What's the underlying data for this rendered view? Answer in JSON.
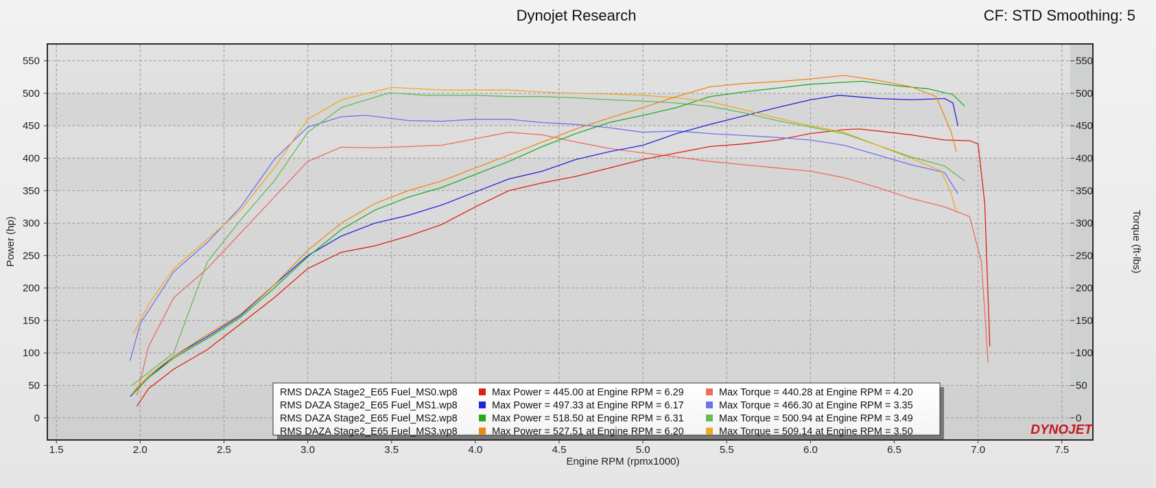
{
  "header": {
    "title": "Dynojet Research",
    "cf_label": "CF: STD Smoothing: 5"
  },
  "logo_text": "DYNOJET",
  "chart_data": {
    "type": "line",
    "xlabel": "Engine RPM (rpmx1000)",
    "ylabel": "Power (hp)",
    "y2label": "Torque (ft-lbs)",
    "xlim": [
      1.45,
      7.55
    ],
    "ylim": [
      -33,
      575
    ],
    "x_ticks": [
      "1.5",
      "2.0",
      "2.5",
      "3.0",
      "3.5",
      "4.0",
      "4.5",
      "5.0",
      "5.5",
      "6.0",
      "6.5",
      "7.0",
      "7.5"
    ],
    "y_ticks": [
      "0",
      "50",
      "100",
      "150",
      "200",
      "250",
      "300",
      "350",
      "400",
      "450",
      "500",
      "550"
    ],
    "grid": true,
    "legend_position": "bottom-center",
    "runs": [
      {
        "file": "RMS DAZA Stage2_E65 Fuel_MS0.wp8",
        "power_color": "#dd2211",
        "torque_color": "#ee6a5e",
        "power_legend": "Max Power = 445.00 at Engine RPM = 6.29",
        "torque_legend": "Max Torque = 440.28 at Engine RPM = 4.20",
        "power": [
          [
            1.98,
            18
          ],
          [
            2.05,
            45
          ],
          [
            2.2,
            75
          ],
          [
            2.4,
            105
          ],
          [
            2.6,
            145
          ],
          [
            2.8,
            185
          ],
          [
            3.0,
            230
          ],
          [
            3.2,
            255
          ],
          [
            3.4,
            265
          ],
          [
            3.6,
            280
          ],
          [
            3.8,
            298
          ],
          [
            4.0,
            325
          ],
          [
            4.2,
            350
          ],
          [
            4.4,
            362
          ],
          [
            4.6,
            372
          ],
          [
            4.8,
            385
          ],
          [
            5.0,
            398
          ],
          [
            5.2,
            408
          ],
          [
            5.4,
            418
          ],
          [
            5.6,
            422
          ],
          [
            5.8,
            428
          ],
          [
            6.0,
            438
          ],
          [
            6.2,
            444
          ],
          [
            6.29,
            445
          ],
          [
            6.4,
            442
          ],
          [
            6.6,
            436
          ],
          [
            6.8,
            428
          ],
          [
            6.95,
            427
          ],
          [
            7.0,
            422
          ],
          [
            7.04,
            330
          ],
          [
            7.07,
            110
          ]
        ],
        "torque": [
          [
            1.98,
            35
          ],
          [
            2.05,
            110
          ],
          [
            2.2,
            185
          ],
          [
            2.4,
            230
          ],
          [
            2.6,
            285
          ],
          [
            2.8,
            340
          ],
          [
            3.0,
            395
          ],
          [
            3.2,
            417
          ],
          [
            3.4,
            416
          ],
          [
            3.6,
            418
          ],
          [
            3.8,
            420
          ],
          [
            4.0,
            430
          ],
          [
            4.2,
            440
          ],
          [
            4.4,
            436
          ],
          [
            4.6,
            425
          ],
          [
            4.8,
            415
          ],
          [
            5.0,
            408
          ],
          [
            5.2,
            402
          ],
          [
            5.4,
            395
          ],
          [
            5.6,
            390
          ],
          [
            5.8,
            385
          ],
          [
            6.0,
            380
          ],
          [
            6.2,
            370
          ],
          [
            6.4,
            355
          ],
          [
            6.6,
            338
          ],
          [
            6.8,
            325
          ],
          [
            6.95,
            310
          ],
          [
            7.02,
            240
          ],
          [
            7.06,
            85
          ]
        ]
      },
      {
        "file": "RMS DAZA Stage2_E65 Fuel_MS1.wp8",
        "power_color": "#2222dd",
        "torque_color": "#7070ee",
        "power_legend": "Max Power = 497.33 at Engine RPM = 6.17",
        "torque_legend": "Max Torque = 466.30 at Engine RPM = 3.35",
        "power": [
          [
            1.94,
            33
          ],
          [
            2.05,
            62
          ],
          [
            2.2,
            95
          ],
          [
            2.4,
            125
          ],
          [
            2.6,
            158
          ],
          [
            2.8,
            205
          ],
          [
            3.0,
            250
          ],
          [
            3.2,
            280
          ],
          [
            3.4,
            300
          ],
          [
            3.6,
            312
          ],
          [
            3.8,
            328
          ],
          [
            4.0,
            348
          ],
          [
            4.2,
            368
          ],
          [
            4.4,
            380
          ],
          [
            4.6,
            398
          ],
          [
            4.8,
            410
          ],
          [
            5.0,
            420
          ],
          [
            5.2,
            438
          ],
          [
            5.4,
            452
          ],
          [
            5.6,
            465
          ],
          [
            5.8,
            478
          ],
          [
            6.0,
            490
          ],
          [
            6.17,
            497
          ],
          [
            6.4,
            492
          ],
          [
            6.6,
            490
          ],
          [
            6.8,
            492
          ],
          [
            6.85,
            485
          ],
          [
            6.88,
            450
          ]
        ],
        "torque": [
          [
            1.94,
            88
          ],
          [
            2.0,
            145
          ],
          [
            2.05,
            165
          ],
          [
            2.2,
            225
          ],
          [
            2.4,
            270
          ],
          [
            2.6,
            325
          ],
          [
            2.8,
            398
          ],
          [
            3.0,
            448
          ],
          [
            3.2,
            464
          ],
          [
            3.35,
            466
          ],
          [
            3.6,
            458
          ],
          [
            3.8,
            457
          ],
          [
            4.0,
            460
          ],
          [
            4.2,
            460
          ],
          [
            4.4,
            455
          ],
          [
            4.6,
            452
          ],
          [
            4.8,
            447
          ],
          [
            5.0,
            440
          ],
          [
            5.2,
            442
          ],
          [
            5.4,
            438
          ],
          [
            5.6,
            435
          ],
          [
            5.8,
            432
          ],
          [
            6.0,
            428
          ],
          [
            6.2,
            420
          ],
          [
            6.4,
            405
          ],
          [
            6.6,
            390
          ],
          [
            6.8,
            378
          ],
          [
            6.88,
            345
          ]
        ]
      },
      {
        "file": "RMS DAZA Stage2_E65 Fuel_MS2.wp8",
        "power_color": "#22aa22",
        "torque_color": "#66bb55",
        "power_legend": "Max Power = 518.50 at Engine RPM = 6.31",
        "torque_legend": "Max Torque = 500.94 at Engine RPM = 3.49",
        "power": [
          [
            1.95,
            35
          ],
          [
            2.05,
            62
          ],
          [
            2.2,
            92
          ],
          [
            2.4,
            122
          ],
          [
            2.6,
            155
          ],
          [
            2.8,
            200
          ],
          [
            3.0,
            248
          ],
          [
            3.2,
            290
          ],
          [
            3.4,
            320
          ],
          [
            3.6,
            340
          ],
          [
            3.8,
            355
          ],
          [
            4.0,
            375
          ],
          [
            4.2,
            395
          ],
          [
            4.4,
            418
          ],
          [
            4.6,
            438
          ],
          [
            4.8,
            455
          ],
          [
            5.0,
            466
          ],
          [
            5.2,
            478
          ],
          [
            5.4,
            495
          ],
          [
            5.6,
            502
          ],
          [
            5.8,
            508
          ],
          [
            6.0,
            514
          ],
          [
            6.2,
            517
          ],
          [
            6.31,
            518.5
          ],
          [
            6.5,
            512
          ],
          [
            6.7,
            507
          ],
          [
            6.85,
            498
          ],
          [
            6.92,
            480
          ]
        ],
        "torque": [
          [
            1.95,
            50
          ],
          [
            2.05,
            70
          ],
          [
            2.2,
            100
          ],
          [
            2.4,
            240
          ],
          [
            2.6,
            305
          ],
          [
            2.8,
            365
          ],
          [
            3.0,
            440
          ],
          [
            3.2,
            478
          ],
          [
            3.49,
            501
          ],
          [
            3.7,
            497
          ],
          [
            4.0,
            497
          ],
          [
            4.2,
            495
          ],
          [
            4.4,
            495
          ],
          [
            4.6,
            493
          ],
          [
            4.8,
            490
          ],
          [
            5.0,
            488
          ],
          [
            5.2,
            485
          ],
          [
            5.4,
            480
          ],
          [
            5.6,
            470
          ],
          [
            5.8,
            458
          ],
          [
            6.0,
            448
          ],
          [
            6.2,
            438
          ],
          [
            6.4,
            420
          ],
          [
            6.6,
            402
          ],
          [
            6.8,
            388
          ],
          [
            6.92,
            365
          ]
        ]
      },
      {
        "file": "RMS DAZA Stage2_E65 Fuel_MS3.wp8",
        "power_color": "#ee8811",
        "torque_color": "#eeaa22",
        "power_legend": "Max Power = 527.51 at Engine RPM = 6.20",
        "torque_legend": "Max Torque = 509.14 at Engine RPM = 3.50",
        "power": [
          [
            1.96,
            40
          ],
          [
            2.05,
            65
          ],
          [
            2.2,
            95
          ],
          [
            2.4,
            128
          ],
          [
            2.6,
            160
          ],
          [
            2.8,
            205
          ],
          [
            3.0,
            258
          ],
          [
            3.2,
            300
          ],
          [
            3.4,
            330
          ],
          [
            3.6,
            350
          ],
          [
            3.8,
            365
          ],
          [
            4.0,
            385
          ],
          [
            4.2,
            405
          ],
          [
            4.4,
            425
          ],
          [
            4.6,
            445
          ],
          [
            4.8,
            462
          ],
          [
            5.0,
            478
          ],
          [
            5.2,
            495
          ],
          [
            5.4,
            510
          ],
          [
            5.6,
            515
          ],
          [
            5.8,
            518
          ],
          [
            6.0,
            522
          ],
          [
            6.2,
            527.5
          ],
          [
            6.4,
            520
          ],
          [
            6.6,
            510
          ],
          [
            6.75,
            495
          ],
          [
            6.84,
            440
          ],
          [
            6.87,
            410
          ]
        ],
        "torque": [
          [
            1.96,
            130
          ],
          [
            2.05,
            175
          ],
          [
            2.2,
            230
          ],
          [
            2.4,
            275
          ],
          [
            2.6,
            320
          ],
          [
            2.8,
            385
          ],
          [
            3.0,
            460
          ],
          [
            3.2,
            490
          ],
          [
            3.5,
            509
          ],
          [
            3.8,
            505
          ],
          [
            4.0,
            505
          ],
          [
            4.2,
            505
          ],
          [
            4.4,
            502
          ],
          [
            4.6,
            500
          ],
          [
            4.8,
            499
          ],
          [
            5.0,
            497
          ],
          [
            5.2,
            493
          ],
          [
            5.4,
            487
          ],
          [
            5.6,
            475
          ],
          [
            5.8,
            462
          ],
          [
            6.0,
            450
          ],
          [
            6.2,
            440
          ],
          [
            6.4,
            420
          ],
          [
            6.6,
            400
          ],
          [
            6.78,
            380
          ],
          [
            6.84,
            345
          ],
          [
            6.87,
            316
          ]
        ]
      }
    ]
  }
}
